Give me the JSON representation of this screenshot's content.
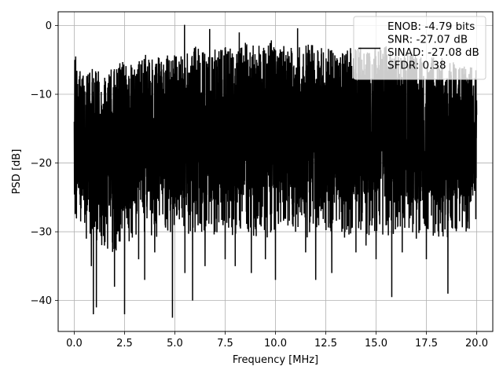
{
  "chart_data": {
    "type": "line",
    "title": "",
    "xlabel": "Frequency [MHz]",
    "ylabel": "PSD [dB]",
    "xlim": [
      -0.8,
      20.8
    ],
    "ylim": [
      -44.5,
      2
    ],
    "xticks": [
      0.0,
      2.5,
      5.0,
      7.5,
      10.0,
      12.5,
      15.0,
      17.5,
      20.0
    ],
    "xtick_labels": [
      "0.0",
      "2.5",
      "5.0",
      "7.5",
      "10.0",
      "12.5",
      "15.0",
      "17.5",
      "20.0"
    ],
    "yticks": [
      0,
      -10,
      -20,
      -30,
      -40
    ],
    "ytick_labels": [
      "0",
      "−10",
      "−20",
      "−30",
      "−40"
    ],
    "grid": true,
    "legend_position": "top-right",
    "legend_lines": [
      "ENOB: -4.79 bits",
      "SNR: -27.07 dB",
      "SINAD: -27.08 dB",
      "SFDR: 0.38"
    ],
    "line_color": "#000000",
    "series": [
      {
        "x": [
          0.0,
          0.03,
          0.06,
          0.12,
          0.2,
          0.3,
          0.6,
          0.85,
          0.95,
          1.1,
          1.5,
          2.0,
          2.5,
          2.6,
          3.2,
          3.5,
          4.0,
          4.88,
          5.0,
          5.5,
          5.88,
          6.5,
          7.0,
          7.5,
          8.0,
          8.8,
          9.5,
          10.0,
          11.0,
          11.5,
          12.0,
          12.8,
          13.3,
          14.0,
          14.5,
          15.0,
          15.78,
          16.3,
          17.0,
          17.5,
          18.57,
          19.0,
          19.5,
          20.0
        ],
        "y": [
          -14,
          -5,
          -13,
          -24,
          -19,
          -15,
          -31,
          -35,
          -42,
          -41,
          -32,
          -38,
          -42,
          -9,
          -34,
          -37,
          -33,
          -42.5,
          -10,
          -36,
          -40,
          -35,
          -30,
          -34,
          -35,
          -36,
          -34,
          -37,
          -30,
          -33,
          -37,
          -36,
          -30,
          -33,
          -32,
          -34,
          -39.5,
          -33,
          -31,
          -34,
          -39,
          -29,
          -25,
          -13
        ]
      }
    ],
    "noise_band": {
      "x": [
        0.0,
        0.5,
        1.0,
        1.5,
        2.0,
        2.5,
        3.0,
        3.5,
        4.0,
        4.5,
        5.0,
        5.5,
        6.0,
        6.5,
        7.0,
        7.5,
        8.0,
        8.5,
        9.0,
        9.5,
        10.0,
        10.5,
        11.0,
        11.5,
        12.0,
        12.5,
        13.0,
        13.5,
        14.0,
        14.5,
        15.0,
        15.5,
        16.0,
        16.5,
        17.0,
        17.5,
        18.0,
        18.5,
        19.0,
        19.5,
        20.0
      ],
      "upper": [
        -4,
        -7,
        -6,
        -7,
        -6,
        -5,
        -6,
        -4,
        -5,
        -4,
        -4,
        -4,
        -3,
        -4,
        -3,
        -3,
        -3,
        -2,
        -3,
        -2,
        -2,
        -3,
        -3,
        -2,
        -3,
        -3,
        -4,
        -3,
        -3,
        -3,
        -3,
        -3,
        -4,
        -4,
        -4,
        -5,
        -4,
        -5,
        -5,
        -6,
        -6
      ],
      "lower": [
        -24,
        -25,
        -27,
        -28,
        -28,
        -27,
        -26,
        -25,
        -26,
        -25,
        -26,
        -25,
        -26,
        -25,
        -26,
        -25,
        -26,
        -25,
        -26,
        -26,
        -25,
        -25,
        -25,
        -26,
        -25,
        -26,
        -25,
        -26,
        -25,
        -26,
        -25,
        -26,
        -26,
        -25,
        -26,
        -25,
        -26,
        -26,
        -25,
        -25,
        -24
      ]
    },
    "peaks": [
      {
        "x": 5.48,
        "y": 0.1
      },
      {
        "x": 6.73,
        "y": -0.5
      },
      {
        "x": 11.1,
        "y": -0.4
      },
      {
        "x": 8.2,
        "y": -1.0
      }
    ]
  }
}
